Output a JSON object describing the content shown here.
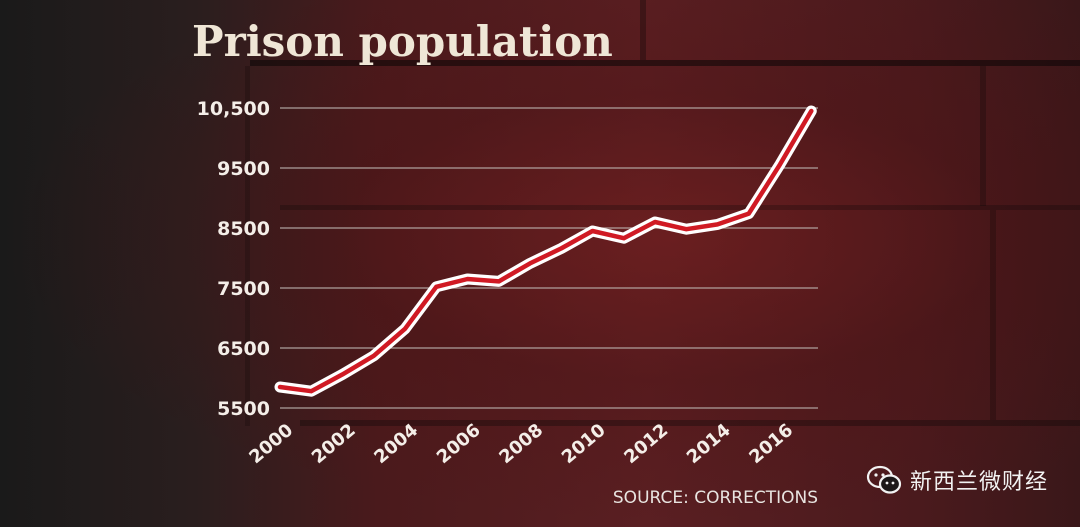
{
  "chart_data": {
    "type": "line",
    "title": "Prison population",
    "source": "SOURCE: CORRECTIONS",
    "xlabel": "",
    "ylabel": "",
    "ylim": [
      5500,
      10500
    ],
    "yticks": [
      5500,
      6500,
      7500,
      8500,
      9500,
      10500
    ],
    "ytick_labels": [
      "5500",
      "6500",
      "7500",
      "8500",
      "9500",
      "10,500"
    ],
    "xlim": [
      2000,
      2017
    ],
    "xtick_labels": [
      "2000",
      "2002",
      "2004",
      "2006",
      "2008",
      "2010",
      "2012",
      "2014",
      "2016"
    ],
    "series": [
      {
        "name": "Prison population",
        "x": [
          2000,
          2001,
          2002,
          2003,
          2004,
          2005,
          2006,
          2007,
          2008,
          2009,
          2010,
          2011,
          2012,
          2013,
          2014,
          2015,
          2016,
          2017
        ],
        "values": [
          5850,
          5780,
          6060,
          6370,
          6820,
          7520,
          7650,
          7610,
          7910,
          8160,
          8450,
          8330,
          8600,
          8480,
          8560,
          8740,
          9560,
          10450
        ]
      }
    ],
    "colors": {
      "line": "#d01a24",
      "halo": "#ffffff"
    }
  },
  "watermark": {
    "text": "新西兰微财经",
    "icon": "wechat-icon"
  }
}
